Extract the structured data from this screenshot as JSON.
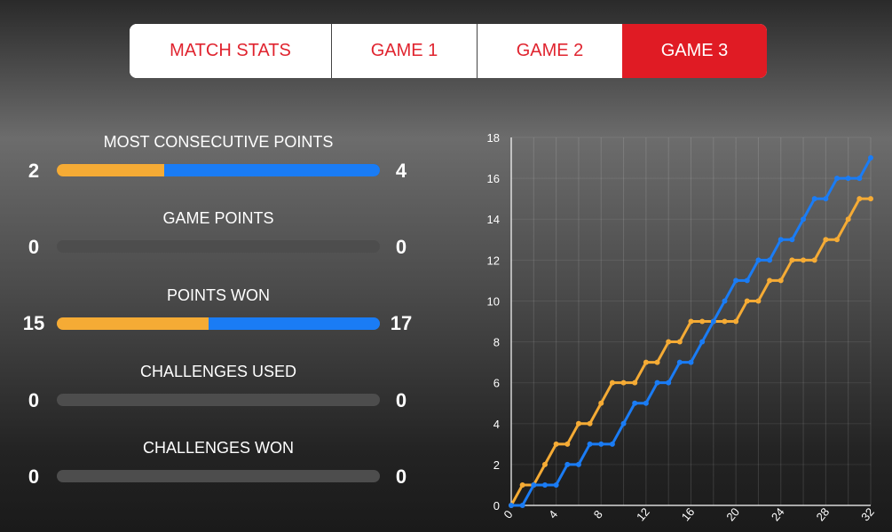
{
  "tabs": [
    {
      "label": "MATCH STATS",
      "active": false
    },
    {
      "label": "GAME 1",
      "active": false
    },
    {
      "label": "GAME 2",
      "active": false
    },
    {
      "label": "GAME 3",
      "active": true
    }
  ],
  "stats": [
    {
      "title": "MOST CONSECUTIVE POINTS",
      "left": "2",
      "right": "4"
    },
    {
      "title": "GAME POINTS",
      "left": "0",
      "right": "0"
    },
    {
      "title": "POINTS WON",
      "left": "15",
      "right": "17"
    },
    {
      "title": "CHALLENGES USED",
      "left": "0",
      "right": "0"
    },
    {
      "title": "CHALLENGES WON",
      "left": "0",
      "right": "0"
    }
  ],
  "colors": {
    "accent": "#e01b24",
    "player_left": "#f5ab35",
    "player_right": "#1a7cf5",
    "bar_empty": "#4d4d4d"
  },
  "chart_data": {
    "type": "line",
    "x_ticks": [
      "0",
      "4",
      "8",
      "12",
      "16",
      "20",
      "24",
      "28",
      "32"
    ],
    "y_ticks": [
      "0",
      "2",
      "4",
      "6",
      "8",
      "10",
      "12",
      "14",
      "16",
      "18"
    ],
    "xlim": [
      0,
      32
    ],
    "ylim": [
      0,
      18
    ],
    "grid": true,
    "series": [
      {
        "color": "#f5ab35",
        "x": [
          0,
          1,
          2,
          3,
          4,
          5,
          6,
          7,
          8,
          9,
          10,
          11,
          12,
          13,
          14,
          15,
          16,
          17,
          18,
          19,
          20,
          21,
          22,
          23,
          24,
          25,
          26,
          27,
          28,
          29,
          30,
          31,
          32
        ],
        "values": [
          0,
          1,
          1,
          2,
          3,
          3,
          4,
          4,
          5,
          6,
          6,
          6,
          7,
          7,
          8,
          8,
          9,
          9,
          9,
          9,
          9,
          10,
          10,
          11,
          11,
          12,
          12,
          12,
          13,
          13,
          14,
          15,
          15
        ]
      },
      {
        "color": "#1a7cf5",
        "x": [
          0,
          1,
          2,
          3,
          4,
          5,
          6,
          7,
          8,
          9,
          10,
          11,
          12,
          13,
          14,
          15,
          16,
          17,
          18,
          19,
          20,
          21,
          22,
          23,
          24,
          25,
          26,
          27,
          28,
          29,
          30,
          31,
          32
        ],
        "values": [
          0,
          0,
          1,
          1,
          1,
          2,
          2,
          3,
          3,
          3,
          4,
          5,
          5,
          6,
          6,
          7,
          7,
          8,
          9,
          10,
          11,
          11,
          12,
          12,
          13,
          13,
          14,
          15,
          15,
          16,
          16,
          16,
          17
        ]
      }
    ]
  }
}
